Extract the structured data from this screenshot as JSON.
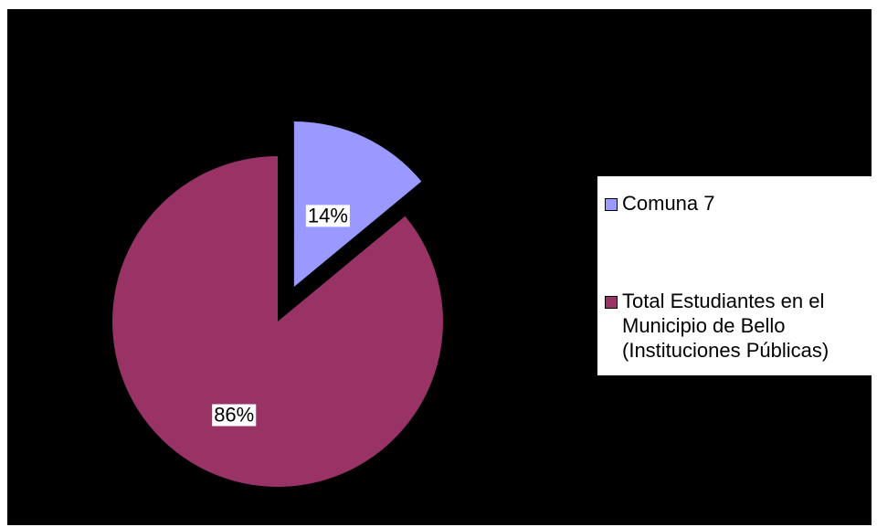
{
  "chart_data": {
    "type": "pie",
    "title": "",
    "slices": [
      {
        "name": "Comuna 7",
        "value": 14,
        "label": "14%",
        "color": "#9999FF",
        "exploded": true
      },
      {
        "name": "Total Estudiantes en el Municipio de Bello (Instituciones Públicas)",
        "value": 86,
        "label": "86%",
        "color": "#993366",
        "exploded": false
      }
    ],
    "legend": {
      "placement": "right",
      "entries": [
        {
          "text": "Comuna 7",
          "color": "#9999FF"
        },
        {
          "text": "Total Estudiantes en el\nMunicipio de Bello\n(Instituciones Públicas)",
          "color": "#993366"
        }
      ]
    },
    "background": "#000000"
  }
}
